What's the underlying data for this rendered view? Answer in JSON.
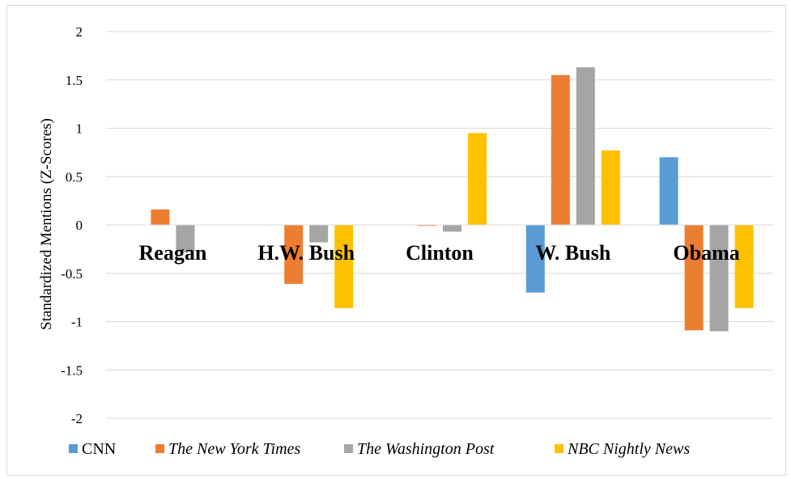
{
  "chart_data": {
    "type": "bar",
    "title": "",
    "xlabel": "",
    "ylabel": "Standardized Mentions (Z-Scores)",
    "ylim": [
      -2,
      2
    ],
    "yticks": [
      "2",
      "1.5",
      "1",
      "0.5",
      "0",
      "-0.5",
      "-1",
      "-1.5",
      "-2"
    ],
    "grid": true,
    "legend_position": "bottom",
    "categories": [
      "Reagan",
      "H.W. Bush",
      "Clinton",
      "W. Bush",
      "Obama"
    ],
    "series": [
      {
        "name": "CNN",
        "italic": false,
        "color": "#5b9bd5",
        "values": [
          0.0,
          0.0,
          0.0,
          -0.7,
          0.7
        ]
      },
      {
        "name": "The New York Times",
        "italic": true,
        "color": "#ed7d31",
        "values": [
          0.16,
          -0.61,
          -0.01,
          1.55,
          -1.09
        ]
      },
      {
        "name": "The Washington Post",
        "italic": true,
        "color": "#a5a5a5",
        "values": [
          -0.28,
          -0.18,
          -0.07,
          1.63,
          -1.1
        ]
      },
      {
        "name": "NBC Nightly News",
        "italic": true,
        "color": "#ffc000",
        "values": [
          0.0,
          -0.86,
          0.95,
          0.77,
          -0.86
        ]
      }
    ]
  }
}
